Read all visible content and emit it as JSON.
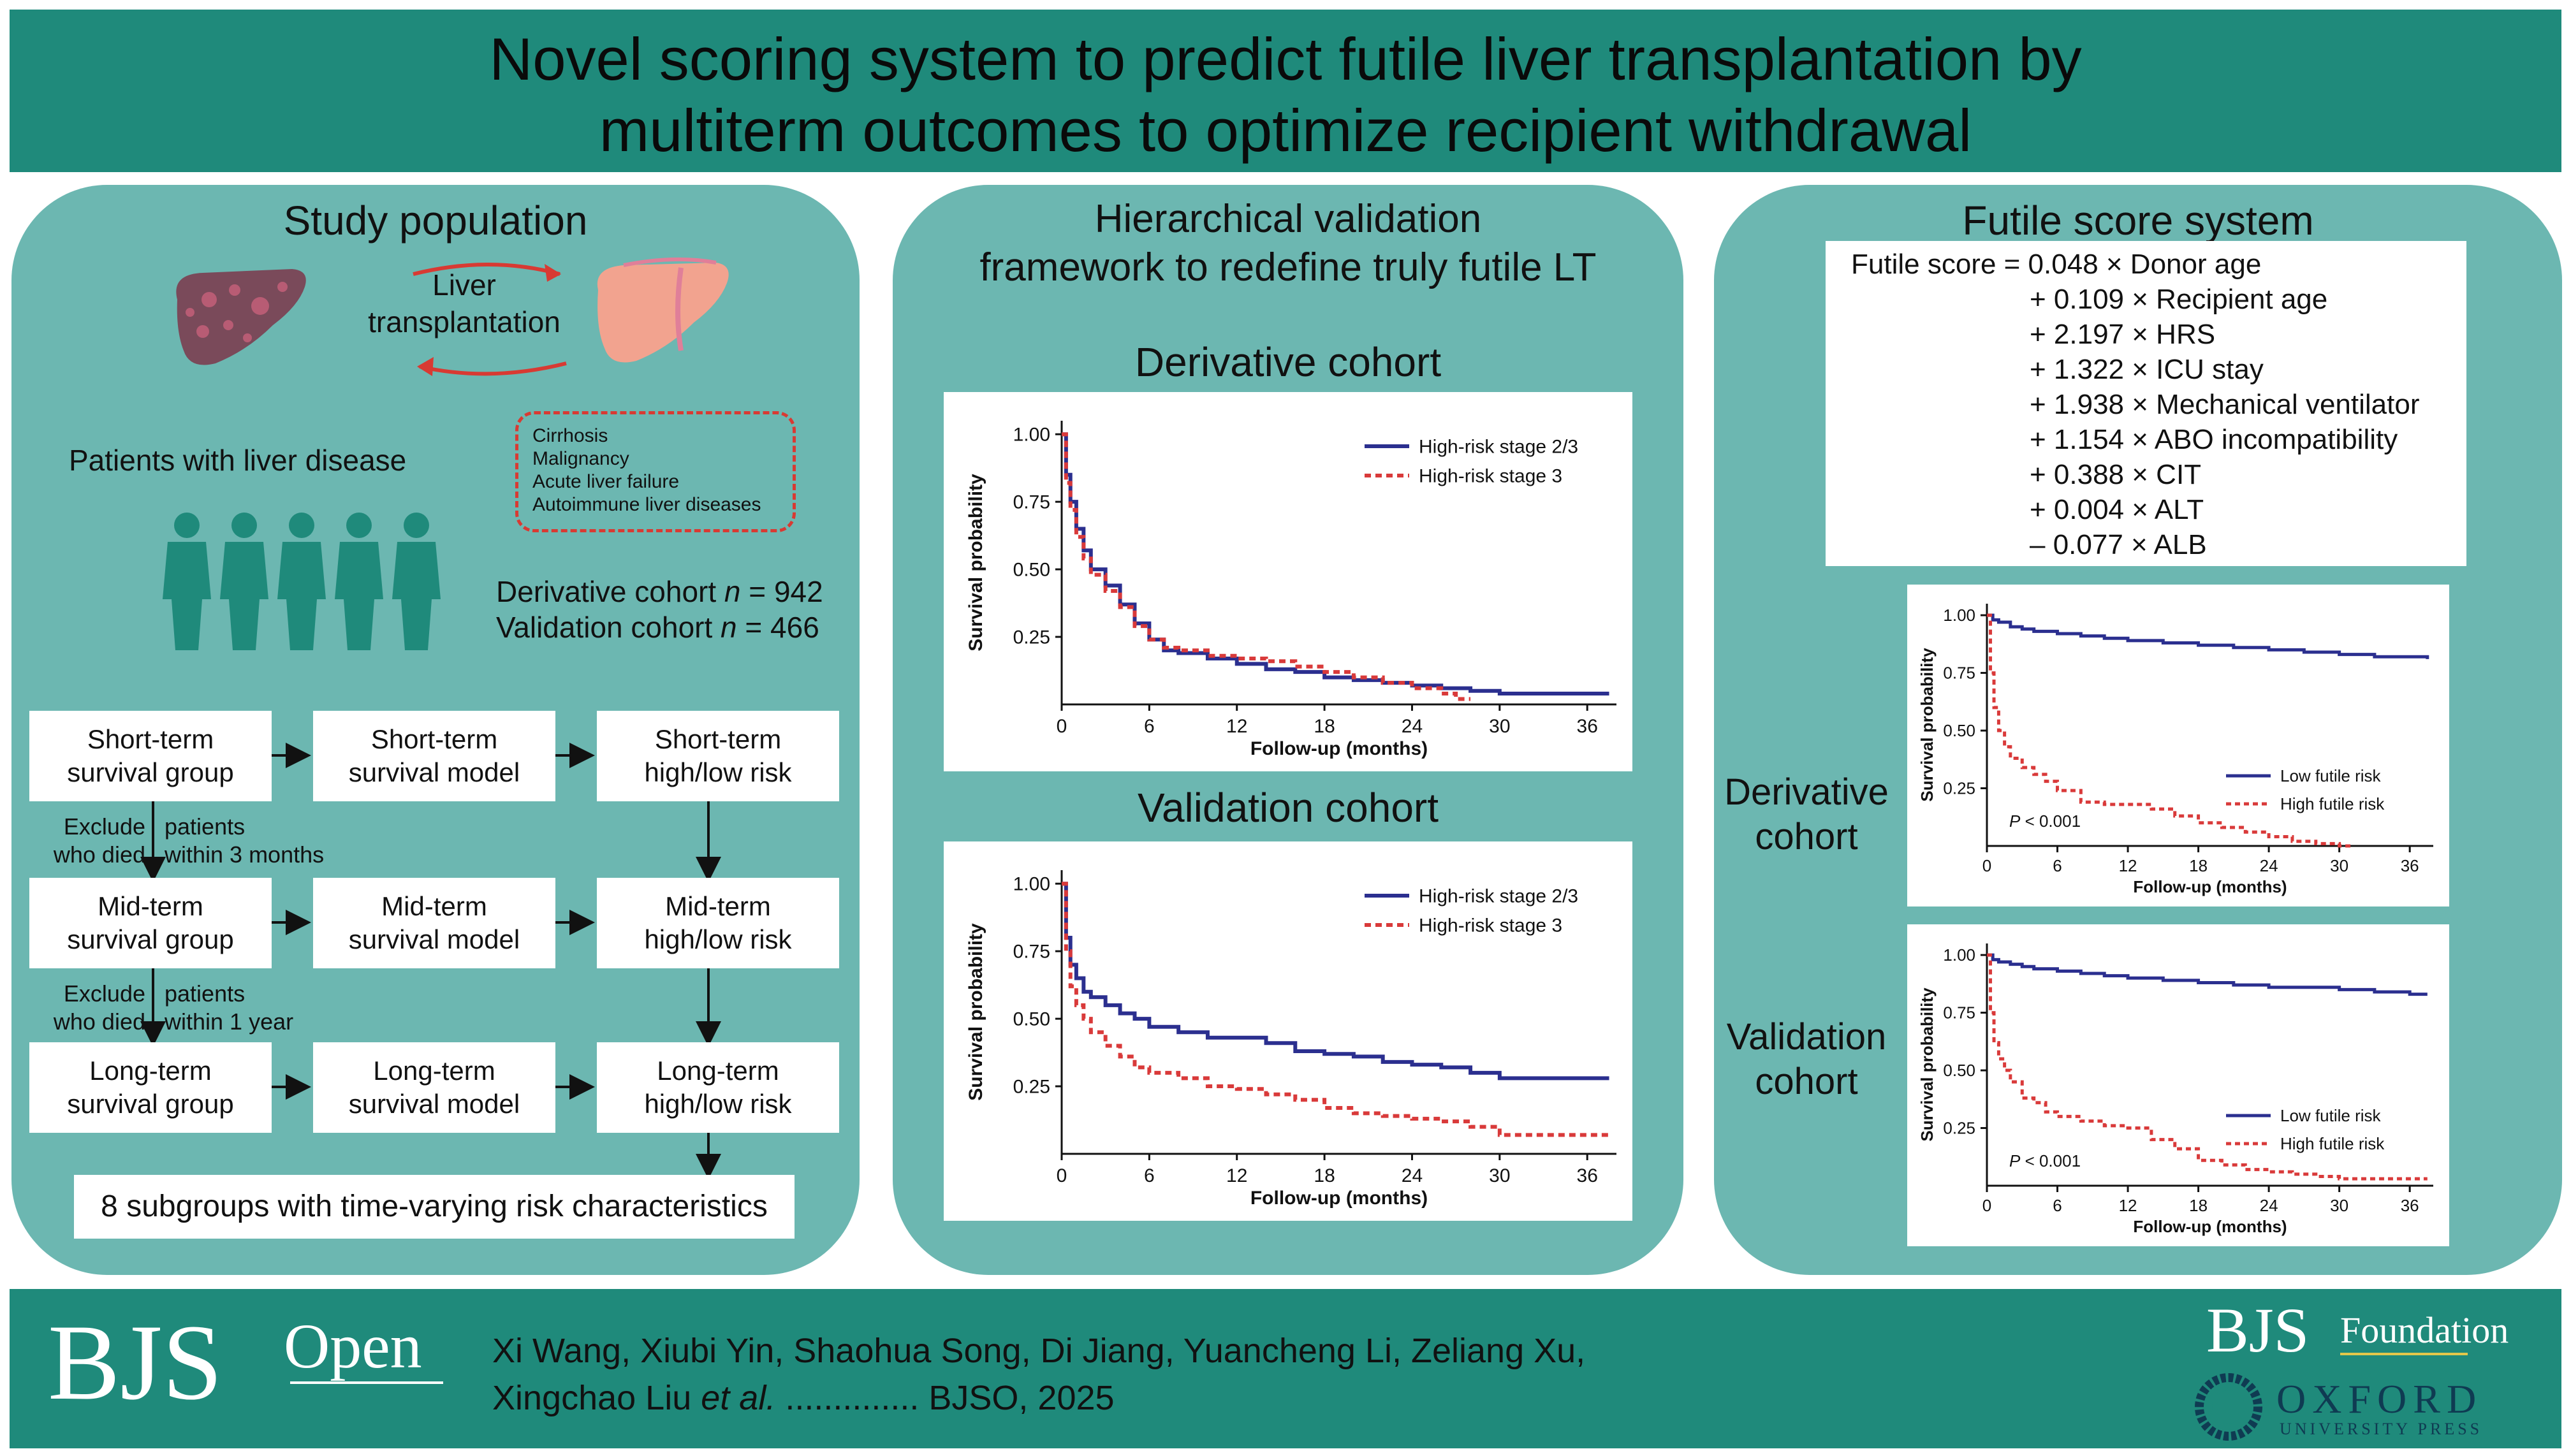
{
  "title": {
    "line1": "Novel scoring system to predict futile liver transplantation by",
    "line2": "multiterm outcomes to optimize recipient withdrawal"
  },
  "colors": {
    "band": "#1f8a7b",
    "panel": "#6cb7b1",
    "blue": "#2b2f8f",
    "red": "#d93a3a",
    "arrow_red": "#d83a33"
  },
  "left": {
    "title": "Study population",
    "lt_label_1": "Liver",
    "lt_label_2": "transplantation",
    "patients_label": "Patients with liver disease",
    "diseases": [
      "Cirrhosis",
      "Malignancy",
      "Acute liver failure",
      "Autoimmune liver diseases"
    ],
    "derivative_text": "Derivative cohort ",
    "derivative_n": "n",
    "derivative_value": " = 942",
    "validation_text": "Validation cohort ",
    "validation_n": "n",
    "validation_value": " = 466",
    "flow": {
      "r1": [
        [
          "Short-term",
          "survival group"
        ],
        [
          "Short-term",
          "survival model"
        ],
        [
          "Short-term",
          "high/low risk"
        ]
      ],
      "r2": [
        [
          "Mid-term",
          "survival group"
        ],
        [
          "Mid-term",
          "survival model"
        ],
        [
          "Mid-term",
          "high/low risk"
        ]
      ],
      "r3": [
        [
          "Long-term",
          "survival group"
        ],
        [
          "Long-term",
          "survival model"
        ],
        [
          "Long-term",
          "high/low risk"
        ]
      ],
      "ex1": [
        "Exclude",
        "who died",
        "patients",
        "within 3 months"
      ],
      "ex2": [
        "Exclude",
        "who died",
        "patients",
        "within 1 year"
      ],
      "summary": "8 subgroups with time-varying risk characteristics"
    }
  },
  "middle": {
    "title_1": "Hierarchical validation",
    "title_2": "framework to redefine truly futile LT",
    "derivative_heading": "Derivative cohort",
    "validation_heading": "Validation cohort"
  },
  "right": {
    "title": "Futile score system",
    "formula": [
      "Futile score = 0.048 × Donor age",
      "+ 0.109 × Recipient age",
      "+ 2.197 × HRS",
      "+ 1.322 × ICU stay",
      "+ 1.938 × Mechanical ventilator",
      "+ 1.154 × ABO incompatibility",
      "+ 0.388 × CIT",
      "+ 0.004 × ALT",
      "– 0.077 × ALB"
    ],
    "derivative_label": [
      "Derivative",
      "cohort"
    ],
    "validation_label": [
      "Validation",
      "cohort"
    ]
  },
  "chart_data": [
    {
      "type": "line",
      "id": "mid-derivative",
      "xlabel": "Follow-up (months)",
      "ylabel": "Survival probability",
      "xticks": [
        0,
        6,
        12,
        18,
        24,
        30,
        36
      ],
      "yticks": [
        0.25,
        0.5,
        0.75,
        1.0
      ],
      "ytick_labels": [
        "0.25",
        "0.50",
        "0.75",
        "1.00"
      ],
      "xlim": [
        0,
        38
      ],
      "ylim": [
        0,
        1.05
      ],
      "legend_position": "top-right",
      "series": [
        {
          "name": "High-risk stage 2/3",
          "color": "blue",
          "dash": false,
          "x": [
            0,
            0.3,
            0.6,
            1,
            1.5,
            2,
            3,
            4,
            5,
            6,
            7,
            8,
            10,
            12,
            14,
            16,
            18,
            20,
            22,
            24,
            26,
            28,
            30,
            33,
            36,
            37.5
          ],
          "y": [
            1.0,
            0.85,
            0.75,
            0.65,
            0.57,
            0.5,
            0.44,
            0.37,
            0.3,
            0.24,
            0.2,
            0.19,
            0.17,
            0.15,
            0.13,
            0.12,
            0.1,
            0.09,
            0.08,
            0.07,
            0.06,
            0.05,
            0.04,
            0.04,
            0.04,
            0.04
          ]
        },
        {
          "name": "High-risk stage 3",
          "color": "red",
          "dash": true,
          "x": [
            0,
            0.3,
            0.6,
            1,
            1.5,
            2,
            3,
            4,
            5,
            6,
            7,
            8,
            10,
            12,
            14,
            16,
            18,
            20,
            22,
            24,
            26,
            27,
            28
          ],
          "y": [
            1.0,
            0.82,
            0.72,
            0.62,
            0.54,
            0.48,
            0.42,
            0.36,
            0.29,
            0.24,
            0.21,
            0.2,
            0.18,
            0.17,
            0.16,
            0.14,
            0.12,
            0.1,
            0.08,
            0.06,
            0.04,
            0.02,
            0.02
          ]
        }
      ]
    },
    {
      "type": "line",
      "id": "mid-validation",
      "xlabel": "Follow-up (months)",
      "ylabel": "Survival probability",
      "xticks": [
        0,
        6,
        12,
        18,
        24,
        30,
        36
      ],
      "yticks": [
        0.25,
        0.5,
        0.75,
        1.0
      ],
      "ytick_labels": [
        "0.25",
        "0.50",
        "0.75",
        "1.00"
      ],
      "xlim": [
        0,
        38
      ],
      "ylim": [
        0,
        1.05
      ],
      "legend_position": "top-right",
      "series": [
        {
          "name": "High-risk stage 2/3",
          "color": "blue",
          "dash": false,
          "x": [
            0,
            0.3,
            0.6,
            1,
            1.5,
            2,
            3,
            4,
            5,
            6,
            8,
            10,
            12,
            14,
            16,
            18,
            20,
            22,
            24,
            26,
            28,
            30,
            33,
            36,
            37.5
          ],
          "y": [
            1.0,
            0.8,
            0.7,
            0.65,
            0.6,
            0.58,
            0.55,
            0.52,
            0.5,
            0.47,
            0.45,
            0.43,
            0.43,
            0.41,
            0.38,
            0.37,
            0.36,
            0.34,
            0.33,
            0.32,
            0.3,
            0.28,
            0.28,
            0.28,
            0.28
          ]
        },
        {
          "name": "High-risk stage 3",
          "color": "red",
          "dash": true,
          "x": [
            0,
            0.3,
            0.6,
            1,
            1.5,
            2,
            3,
            4,
            5,
            6,
            8,
            10,
            12,
            14,
            16,
            18,
            20,
            22,
            24,
            26,
            28,
            30,
            33,
            36,
            37.5
          ],
          "y": [
            1.0,
            0.75,
            0.62,
            0.55,
            0.5,
            0.45,
            0.4,
            0.36,
            0.32,
            0.3,
            0.28,
            0.25,
            0.24,
            0.22,
            0.2,
            0.17,
            0.15,
            0.14,
            0.13,
            0.12,
            0.1,
            0.07,
            0.07,
            0.07,
            0.07
          ]
        }
      ]
    },
    {
      "type": "line",
      "id": "right-derivative",
      "xlabel": "Follow-up (months)",
      "ylabel": "Survival probability",
      "xticks": [
        0,
        6,
        12,
        18,
        24,
        30,
        36
      ],
      "yticks": [
        0.25,
        0.5,
        0.75,
        1.0
      ],
      "ytick_labels": [
        "0.25",
        "0.50",
        "0.75",
        "1.00"
      ],
      "xlim": [
        0,
        38
      ],
      "ylim": [
        0,
        1.05
      ],
      "legend_position": "bottom-right",
      "annotation": "< 0.001",
      "annotation_p": "P",
      "series": [
        {
          "name": "Low futile risk",
          "color": "blue",
          "dash": false,
          "x": [
            0,
            0.5,
            1,
            2,
            3,
            4,
            6,
            8,
            10,
            12,
            15,
            18,
            21,
            24,
            27,
            30,
            33,
            36,
            37.5
          ],
          "y": [
            1.0,
            0.98,
            0.97,
            0.95,
            0.94,
            0.93,
            0.92,
            0.91,
            0.9,
            0.89,
            0.88,
            0.87,
            0.86,
            0.85,
            0.84,
            0.83,
            0.82,
            0.82,
            0.81
          ]
        },
        {
          "name": "High futile risk",
          "color": "red",
          "dash": true,
          "x": [
            0,
            0.3,
            0.6,
            1,
            1.5,
            2,
            3,
            4,
            5,
            6,
            8,
            10,
            12,
            14,
            16,
            18,
            20,
            22,
            24,
            26,
            28,
            30,
            31
          ],
          "y": [
            1.0,
            0.75,
            0.6,
            0.5,
            0.43,
            0.38,
            0.34,
            0.31,
            0.28,
            0.24,
            0.19,
            0.18,
            0.18,
            0.16,
            0.13,
            0.1,
            0.08,
            0.06,
            0.04,
            0.02,
            0.01,
            0.0,
            0.0
          ]
        }
      ]
    },
    {
      "type": "line",
      "id": "right-validation",
      "xlabel": "Follow-up (months)",
      "ylabel": "Survival probability",
      "xticks": [
        0,
        6,
        12,
        18,
        24,
        30,
        36
      ],
      "yticks": [
        0.25,
        0.5,
        0.75,
        1.0
      ],
      "ytick_labels": [
        "0.25",
        "0.50",
        "0.75",
        "1.00"
      ],
      "xlim": [
        0,
        38
      ],
      "ylim": [
        0,
        1.05
      ],
      "legend_position": "bottom-right",
      "annotation": "< 0.001",
      "annotation_p": "P",
      "series": [
        {
          "name": "Low futile risk",
          "color": "blue",
          "dash": false,
          "x": [
            0,
            0.5,
            1,
            2,
            3,
            4,
            6,
            8,
            10,
            12,
            15,
            18,
            21,
            24,
            27,
            30,
            33,
            36,
            37.5
          ],
          "y": [
            1.0,
            0.98,
            0.97,
            0.96,
            0.95,
            0.94,
            0.93,
            0.92,
            0.91,
            0.9,
            0.89,
            0.88,
            0.87,
            0.86,
            0.86,
            0.85,
            0.84,
            0.83,
            0.83
          ]
        },
        {
          "name": "High futile risk",
          "color": "red",
          "dash": true,
          "x": [
            0,
            0.3,
            0.6,
            1,
            1.5,
            2,
            3,
            4,
            5,
            6,
            8,
            10,
            12,
            14,
            16,
            18,
            20,
            22,
            24,
            26,
            28,
            30,
            33,
            36,
            37.5
          ],
          "y": [
            1.0,
            0.75,
            0.62,
            0.55,
            0.5,
            0.45,
            0.38,
            0.36,
            0.32,
            0.3,
            0.28,
            0.26,
            0.25,
            0.2,
            0.16,
            0.11,
            0.09,
            0.07,
            0.06,
            0.05,
            0.04,
            0.03,
            0.03,
            0.03,
            0.03
          ]
        }
      ]
    }
  ],
  "footer": {
    "bjs": "BJS",
    "open": "Open",
    "authors_1": "Xi Wang, Xiubi Yin, Shaohua Song, Di Jiang, Yuancheng Li, Zeliang Xu,",
    "authors_2a": "Xingchao Liu ",
    "authors_2b": "et al.",
    "authors_2c": " .............. BJSO, 2025",
    "bjs2": "BJS",
    "foundation": "Foundation",
    "oxford": "OXFORD",
    "up": "UNIVERSITY PRESS"
  }
}
